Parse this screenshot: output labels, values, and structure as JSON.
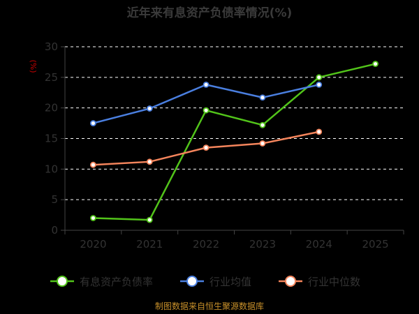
{
  "chart_data": {
    "type": "line",
    "title": "近年来有息资产负债率情况(%)",
    "unit_label": "(%)",
    "x": [
      "2020",
      "2021",
      "2022",
      "2023",
      "2024",
      "2025"
    ],
    "ylim": [
      0,
      30
    ],
    "yticks": [
      0,
      5,
      10,
      15,
      20,
      25,
      30
    ],
    "grid": true,
    "legend_position": "bottom",
    "series": [
      {
        "name": "有息资产负债率",
        "color": "#52c41a",
        "values": [
          2.0,
          1.7,
          19.6,
          17.2,
          25.0,
          27.2
        ]
      },
      {
        "name": "行业均值",
        "color": "#4a7fe0",
        "values": [
          17.5,
          19.9,
          23.8,
          21.7,
          23.8,
          null
        ]
      },
      {
        "name": "行业中位数",
        "color": "#f5855c",
        "values": [
          10.7,
          11.2,
          13.5,
          14.2,
          16.1,
          null
        ]
      }
    ],
    "source": "制图数据来自恒生聚源数据库"
  }
}
